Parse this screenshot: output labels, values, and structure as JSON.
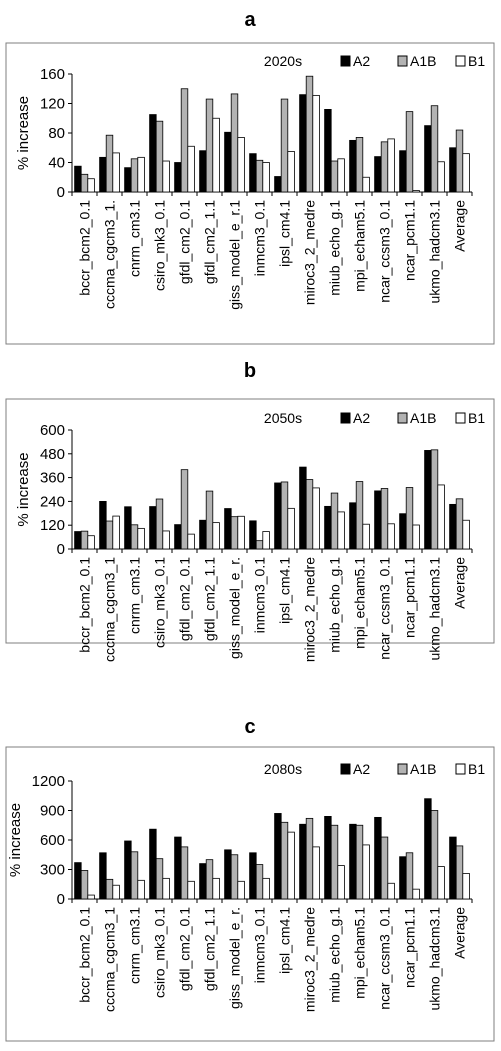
{
  "chart_data": [
    {
      "type": "bar",
      "panel_label": "a",
      "period_label": "2020s",
      "ylabel": "% increase",
      "ylim": [
        0,
        160
      ],
      "yticks": [
        "0",
        "40",
        "80",
        "120",
        "160"
      ],
      "ytick_values": [
        0,
        40,
        80,
        120,
        160
      ],
      "categories": [
        "bccr_bcm2_0.1",
        "cccma_cgcm3_1.",
        "cnrm_cm3.1",
        "csiro_mk3_0.1",
        "gfdl_cm2_0.1",
        "gfdl_cm2_1.1",
        "giss_model_e_r.1",
        "inmcm3_0.1",
        "ipsl_cm4.1",
        "miroc3_2_medre",
        "miub_echo_g.1",
        "mpi_echam5.1",
        "ncar_ccsm3_0.1",
        "ncar_pcm1.1",
        "ukmo_hadcm3.1",
        "Average"
      ],
      "series": [
        {
          "name": "A2",
          "values": [
            35,
            47,
            33,
            105,
            40,
            56,
            81,
            52,
            21,
            132,
            112,
            70,
            48,
            56,
            90,
            60
          ]
        },
        {
          "name": "A1B",
          "values": [
            24,
            77,
            45,
            96,
            140,
            126,
            133,
            43,
            126,
            157,
            42,
            74,
            68,
            109,
            117,
            84
          ]
        },
        {
          "name": "B1",
          "values": [
            18,
            53,
            47,
            42,
            62,
            100,
            74,
            40,
            55,
            131,
            45,
            20,
            72,
            2,
            41,
            52
          ]
        }
      ],
      "legend_position": "top-right",
      "grid": false
    },
    {
      "type": "bar",
      "panel_label": "b",
      "period_label": "2050s",
      "ylabel": "% increase",
      "ylim": [
        0,
        600
      ],
      "yticks": [
        "0",
        "120",
        "240",
        "360",
        "480",
        "600"
      ],
      "ytick_values": [
        0,
        120,
        240,
        360,
        480,
        600
      ],
      "categories": [
        "bccr_bcm2_0.1",
        "cccma_cgcm3_1",
        "cnrm_cm3.1",
        "csiro_mk3_0.1",
        "gfdl_cm2_0.1",
        "gfdl_cm2_1.1",
        "giss_model_e_r.",
        "inmcm3_0.1",
        "ipsl_cm4.1",
        "miroc3_2_medre",
        "miub_echo_g.1",
        "mpi_echam5.1",
        "ncar_ccsm3_0.1",
        "ncar_pcm1.1",
        "ukmo_hadcm3.1",
        "Average"
      ],
      "series": [
        {
          "name": "A2",
          "values": [
            88,
            240,
            213,
            214,
            123,
            145,
            204,
            142,
            333,
            413,
            215,
            233,
            293,
            178,
            497,
            225
          ]
        },
        {
          "name": "A1B",
          "values": [
            90,
            141,
            122,
            252,
            400,
            292,
            163,
            42,
            338,
            350,
            282,
            340,
            305,
            310,
            500,
            253
          ]
        },
        {
          "name": "B1",
          "values": [
            67,
            166,
            104,
            91,
            75,
            133,
            165,
            88,
            205,
            308,
            187,
            125,
            127,
            121,
            323,
            145
          ]
        }
      ],
      "legend_position": "top-right",
      "grid": false
    },
    {
      "type": "bar",
      "panel_label": "c",
      "period_label": "2080s",
      "ylabel": "% increase",
      "ylim": [
        0,
        1200
      ],
      "yticks": [
        "0",
        "300",
        "600",
        "900",
        "1200"
      ],
      "ytick_values": [
        0,
        300,
        600,
        900,
        1200
      ],
      "categories": [
        "bccr_bcm2_0.1",
        "cccma_cgcm3_1",
        "cnrm_cm3.1",
        "csiro_mk3_0.1",
        "gfdl_cm2_0.1",
        "gfdl_cm2_1.1",
        "giss_model_e_r.",
        "inmcm3_0.1",
        "ipsl_cm4.1",
        "miroc3_2_medre",
        "miub_echo_g.1",
        "mpi_echam5.1",
        "ncar_ccsm3_0.1",
        "ncar_pcm1.1",
        "ukmo_hadcm3.1",
        "Average"
      ],
      "series": [
        {
          "name": "A2",
          "values": [
            370,
            470,
            590,
            710,
            630,
            360,
            500,
            470,
            870,
            760,
            840,
            760,
            830,
            430,
            1020,
            630
          ]
        },
        {
          "name": "A1B",
          "values": [
            290,
            200,
            480,
            410,
            530,
            400,
            450,
            350,
            780,
            820,
            750,
            750,
            630,
            470,
            900,
            540
          ]
        },
        {
          "name": "B1",
          "values": [
            40,
            140,
            190,
            210,
            180,
            210,
            180,
            210,
            680,
            530,
            340,
            550,
            160,
            100,
            330,
            260
          ]
        }
      ],
      "legend_position": "top-right",
      "grid": false
    }
  ],
  "colors": {
    "A2": "#000000",
    "A1B": "#b3b3b3",
    "B1": "#ffffff",
    "frame": "#7f7f7f"
  }
}
